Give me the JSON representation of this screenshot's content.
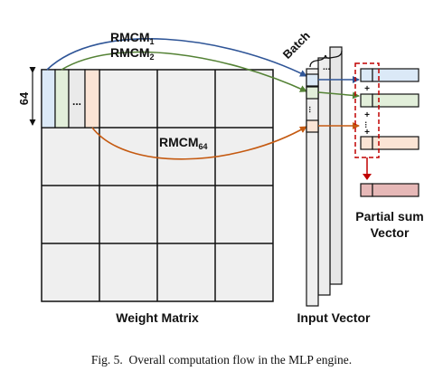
{
  "figure": {
    "caption": "Fig. 5.  Overall computation flow in the MLP engine.",
    "weight_matrix": {
      "title": "Weight Matrix",
      "size_label": "64",
      "ellipsis": "..."
    },
    "arrows": [
      {
        "label": "RMCM",
        "subscript": "1",
        "color": "#2f5597"
      },
      {
        "label": "RMCM",
        "subscript": "2",
        "color": "#548235"
      },
      {
        "label": "RMCM",
        "subscript": "64",
        "color": "#c55a11"
      }
    ],
    "input_vector": {
      "title": "Input Vector",
      "batch_label": "Batch",
      "ellipsis": "..."
    },
    "accumulation": {
      "plus": "+",
      "dots": "..."
    },
    "partial_sum": {
      "title_line1": "Partial sum",
      "title_line2": "Vector"
    },
    "colors": {
      "blue_fill": "#dbe9f7",
      "green_fill": "#e2efda",
      "orange_fill": "#fbe4d5",
      "pink_fill": "#e6b8b7",
      "grid_fill": "#efefef",
      "dashed_red": "#c00000"
    }
  }
}
